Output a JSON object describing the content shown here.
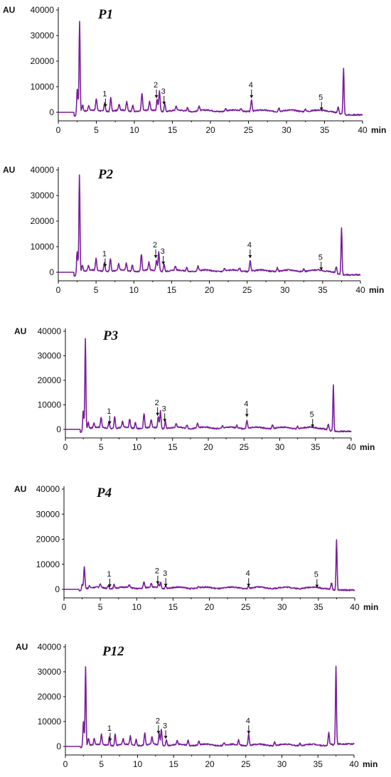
{
  "colors": {
    "trace": "#7a1f9c",
    "axis": "#111111"
  },
  "chart_data": [
    {
      "type": "line",
      "title": "P1",
      "ylabel": "AU",
      "xlabel": "min",
      "xlim": [
        0,
        40
      ],
      "ylim": [
        0,
        40000
      ],
      "x_ticks": [
        "0",
        "5",
        "10",
        "15",
        "20",
        "25",
        "30",
        "35",
        "40"
      ],
      "y_ticks": [
        "0",
        "10000",
        "20000",
        "30000",
        "40000"
      ],
      "baseline": 0,
      "dip": -1500,
      "end_level": -1000,
      "peaks": [
        {
          "x": 2.5,
          "h": 9000
        },
        {
          "x": 2.8,
          "h": 35500
        },
        {
          "x": 3.2,
          "h": 2500
        },
        {
          "x": 4.0,
          "h": 2000
        },
        {
          "x": 5.0,
          "h": 4500
        },
        {
          "x": 6.1,
          "h": 3500
        },
        {
          "x": 6.9,
          "h": 5500
        },
        {
          "x": 8.0,
          "h": 2500
        },
        {
          "x": 9.0,
          "h": 3500
        },
        {
          "x": 9.8,
          "h": 2500
        },
        {
          "x": 11.0,
          "h": 7000
        },
        {
          "x": 12.0,
          "h": 3500
        },
        {
          "x": 13.0,
          "h": 4500
        },
        {
          "x": 13.3,
          "h": 8000
        },
        {
          "x": 14.0,
          "h": 3000
        },
        {
          "x": 15.5,
          "h": 1500
        },
        {
          "x": 17.0,
          "h": 1500
        },
        {
          "x": 18.5,
          "h": 2000
        },
        {
          "x": 22.0,
          "h": 1000
        },
        {
          "x": 24.0,
          "h": 1000
        },
        {
          "x": 25.4,
          "h": 4500
        },
        {
          "x": 29.0,
          "h": 1500
        },
        {
          "x": 32.5,
          "h": 1000
        },
        {
          "x": 36.8,
          "h": 2500
        },
        {
          "x": 37.5,
          "h": 18000
        }
      ],
      "annotations": [
        {
          "label": "1",
          "x": 6.2,
          "y": 1500
        },
        {
          "label": "2",
          "x": 12.9,
          "y": 5000
        },
        {
          "label": "3",
          "x": 13.9,
          "y": 2500
        },
        {
          "label": "4",
          "x": 25.4,
          "y": 5000
        },
        {
          "label": "5",
          "x": 34.6,
          "y": 200
        }
      ]
    },
    {
      "type": "line",
      "title": "P2",
      "ylabel": "AU",
      "xlabel": "min",
      "xlim": [
        0,
        40
      ],
      "ylim": [
        0,
        40000
      ],
      "x_ticks": [
        "0",
        "5",
        "10",
        "15",
        "20",
        "25",
        "30",
        "35",
        "40"
      ],
      "y_ticks": [
        "0",
        "10000",
        "20000",
        "30000",
        "40000"
      ],
      "baseline": 0,
      "dip": -1500,
      "end_level": -1000,
      "peaks": [
        {
          "x": 2.5,
          "h": 8000
        },
        {
          "x": 2.8,
          "h": 38000
        },
        {
          "x": 3.2,
          "h": 2500
        },
        {
          "x": 4.0,
          "h": 2000
        },
        {
          "x": 5.0,
          "h": 4500
        },
        {
          "x": 6.1,
          "h": 3500
        },
        {
          "x": 6.9,
          "h": 5000
        },
        {
          "x": 8.0,
          "h": 2500
        },
        {
          "x": 9.0,
          "h": 3000
        },
        {
          "x": 9.8,
          "h": 2500
        },
        {
          "x": 11.0,
          "h": 6500
        },
        {
          "x": 12.0,
          "h": 3000
        },
        {
          "x": 13.0,
          "h": 4000
        },
        {
          "x": 13.3,
          "h": 7500
        },
        {
          "x": 14.0,
          "h": 3000
        },
        {
          "x": 15.5,
          "h": 1500
        },
        {
          "x": 17.0,
          "h": 1500
        },
        {
          "x": 18.5,
          "h": 1800
        },
        {
          "x": 22.0,
          "h": 1000
        },
        {
          "x": 24.0,
          "h": 1000
        },
        {
          "x": 25.4,
          "h": 4000
        },
        {
          "x": 29.0,
          "h": 1500
        },
        {
          "x": 32.5,
          "h": 1000
        },
        {
          "x": 36.8,
          "h": 2500
        },
        {
          "x": 37.5,
          "h": 18500
        }
      ],
      "annotations": [
        {
          "label": "1",
          "x": 6.2,
          "y": 1500
        },
        {
          "label": "2",
          "x": 12.9,
          "y": 5000
        },
        {
          "label": "3",
          "x": 13.9,
          "y": 2500
        },
        {
          "label": "4",
          "x": 25.4,
          "y": 5000
        },
        {
          "label": "5",
          "x": 34.8,
          "y": 200
        }
      ]
    },
    {
      "type": "line",
      "title": "P3",
      "ylabel": "AU",
      "xlabel": "min",
      "xlim": [
        0,
        40
      ],
      "ylim": [
        0,
        40000
      ],
      "x_ticks": [
        "0",
        "5",
        "10",
        "15",
        "20",
        "25",
        "30",
        "35",
        "40"
      ],
      "y_ticks": [
        "0",
        "10000",
        "20000",
        "30000",
        "40000"
      ],
      "baseline": 0,
      "dip": -1200,
      "end_level": -800,
      "peaks": [
        {
          "x": 2.5,
          "h": 7500
        },
        {
          "x": 2.8,
          "h": 37000
        },
        {
          "x": 3.2,
          "h": 2500
        },
        {
          "x": 4.0,
          "h": 2000
        },
        {
          "x": 5.0,
          "h": 4000
        },
        {
          "x": 6.1,
          "h": 3000
        },
        {
          "x": 6.9,
          "h": 5000
        },
        {
          "x": 8.0,
          "h": 2500
        },
        {
          "x": 9.0,
          "h": 3500
        },
        {
          "x": 9.8,
          "h": 2500
        },
        {
          "x": 11.0,
          "h": 6000
        },
        {
          "x": 12.0,
          "h": 3000
        },
        {
          "x": 13.0,
          "h": 4500
        },
        {
          "x": 13.3,
          "h": 7000
        },
        {
          "x": 14.0,
          "h": 3000
        },
        {
          "x": 15.5,
          "h": 1500
        },
        {
          "x": 17.0,
          "h": 1500
        },
        {
          "x": 18.5,
          "h": 2000
        },
        {
          "x": 22.0,
          "h": 1000
        },
        {
          "x": 24.0,
          "h": 1000
        },
        {
          "x": 25.4,
          "h": 3500
        },
        {
          "x": 29.0,
          "h": 1500
        },
        {
          "x": 32.5,
          "h": 1000
        },
        {
          "x": 36.8,
          "h": 2500
        },
        {
          "x": 37.5,
          "h": 19000
        }
      ],
      "annotations": [
        {
          "label": "1",
          "x": 6.2,
          "y": 1500
        },
        {
          "label": "2",
          "x": 12.9,
          "y": 5000
        },
        {
          "label": "3",
          "x": 13.9,
          "y": 2500
        },
        {
          "label": "4",
          "x": 25.4,
          "y": 4500
        },
        {
          "label": "5",
          "x": 34.6,
          "y": 200
        }
      ]
    },
    {
      "type": "line",
      "title": "P4",
      "ylabel": "AU",
      "xlabel": "min",
      "xlim": [
        0,
        40
      ],
      "ylim": [
        0,
        40000
      ],
      "x_ticks": [
        "0",
        "5",
        "10",
        "15",
        "20",
        "25",
        "30",
        "35",
        "40"
      ],
      "y_ticks": [
        "0",
        "10000",
        "20000",
        "30000",
        "40000"
      ],
      "baseline": 0,
      "dip": -600,
      "end_level": -300,
      "peaks": [
        {
          "x": 2.5,
          "h": 2000
        },
        {
          "x": 2.8,
          "h": 9000
        },
        {
          "x": 3.5,
          "h": 1000
        },
        {
          "x": 5.0,
          "h": 1500
        },
        {
          "x": 6.1,
          "h": 1000
        },
        {
          "x": 6.9,
          "h": 1500
        },
        {
          "x": 9.0,
          "h": 1200
        },
        {
          "x": 11.0,
          "h": 2500
        },
        {
          "x": 12.0,
          "h": 1500
        },
        {
          "x": 13.0,
          "h": 1500
        },
        {
          "x": 13.3,
          "h": 2500
        },
        {
          "x": 14.0,
          "h": 1000
        },
        {
          "x": 18.5,
          "h": 600
        },
        {
          "x": 25.4,
          "h": 800
        },
        {
          "x": 36.8,
          "h": 2500
        },
        {
          "x": 37.5,
          "h": 20000
        }
      ],
      "annotations": [
        {
          "label": "1",
          "x": 6.3,
          "y": 300
        },
        {
          "label": "2",
          "x": 12.9,
          "y": 1500
        },
        {
          "label": "3",
          "x": 14.0,
          "y": 500
        },
        {
          "label": "4",
          "x": 25.4,
          "y": 500
        },
        {
          "label": "5",
          "x": 34.8,
          "y": 100
        }
      ]
    },
    {
      "type": "line",
      "title": "P12",
      "ylabel": "AU",
      "xlabel": "min",
      "xlim": [
        0,
        40
      ],
      "ylim": [
        0,
        40000
      ],
      "x_ticks": [
        "0",
        "5",
        "10",
        "15",
        "20",
        "25",
        "30",
        "35",
        "40"
      ],
      "y_ticks": [
        "0",
        "10000",
        "20000",
        "30000",
        "40000"
      ],
      "baseline": 0,
      "dip": -500,
      "end_level": 1000,
      "peaks": [
        {
          "x": 2.5,
          "h": 10000
        },
        {
          "x": 2.8,
          "h": 32000
        },
        {
          "x": 3.2,
          "h": 3000
        },
        {
          "x": 4.0,
          "h": 2500
        },
        {
          "x": 5.0,
          "h": 4000
        },
        {
          "x": 6.1,
          "h": 3500
        },
        {
          "x": 6.9,
          "h": 4500
        },
        {
          "x": 8.0,
          "h": 2500
        },
        {
          "x": 9.0,
          "h": 3500
        },
        {
          "x": 9.8,
          "h": 2500
        },
        {
          "x": 11.0,
          "h": 5000
        },
        {
          "x": 12.0,
          "h": 3000
        },
        {
          "x": 13.0,
          "h": 4500
        },
        {
          "x": 13.3,
          "h": 6500
        },
        {
          "x": 14.0,
          "h": 2500
        },
        {
          "x": 15.5,
          "h": 1500
        },
        {
          "x": 17.0,
          "h": 2000
        },
        {
          "x": 18.5,
          "h": 1500
        },
        {
          "x": 22.0,
          "h": 1000
        },
        {
          "x": 24.0,
          "h": 2000
        },
        {
          "x": 25.4,
          "h": 4500
        },
        {
          "x": 29.0,
          "h": 1500
        },
        {
          "x": 32.5,
          "h": 1000
        },
        {
          "x": 36.5,
          "h": 5000
        },
        {
          "x": 37.5,
          "h": 31000
        }
      ],
      "annotations": [
        {
          "label": "1",
          "x": 6.2,
          "y": 1500
        },
        {
          "label": "2",
          "x": 12.9,
          "y": 4500
        },
        {
          "label": "3",
          "x": 13.9,
          "y": 2500
        },
        {
          "label": "4",
          "x": 25.4,
          "y": 4500
        }
      ]
    }
  ]
}
